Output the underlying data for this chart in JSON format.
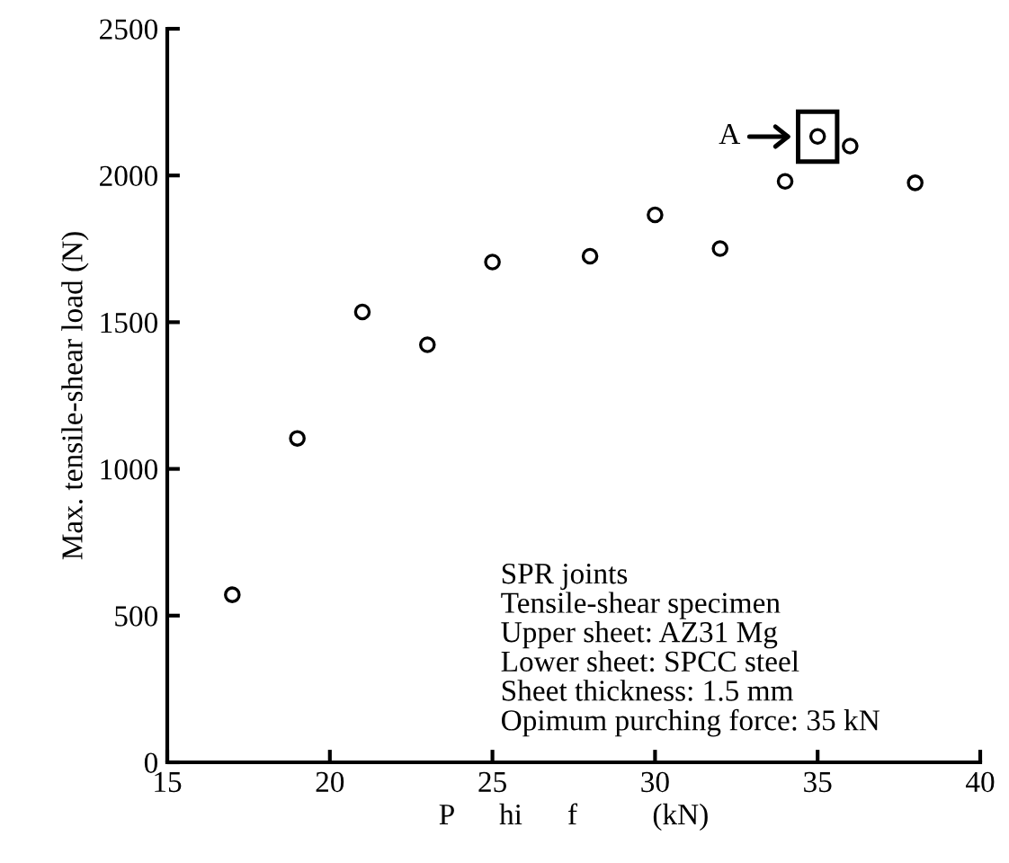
{
  "chart_data": {
    "type": "scatter",
    "xlabel": "P      hi      f          (kN)",
    "ylabel": "Max. tensile-shear load (N)",
    "x": [
      17,
      19,
      21,
      23,
      25,
      28,
      30,
      32,
      34,
      35,
      36,
      38
    ],
    "values": [
      571,
      1104,
      1535,
      1423,
      1705,
      1725,
      1866,
      1751,
      1980,
      2133,
      2100,
      1975
    ],
    "color": "#000000",
    "marker": "circle",
    "xlim": [
      15,
      40
    ],
    "xticks": [
      15,
      20,
      25,
      30,
      35,
      40
    ],
    "ylim": [
      0,
      2500
    ],
    "yticks": [
      0,
      500,
      1000,
      1500,
      2000,
      2500
    ],
    "grid": false,
    "annotations": [
      "A",
      "SPR joints\nTensile-shear specimen\nUpper sheet: AZ31 Mg\nLower sheet: SPCC steel\nSheet thickness: 1.5 mm\nOpimum purching force: 35 kN"
    ]
  }
}
